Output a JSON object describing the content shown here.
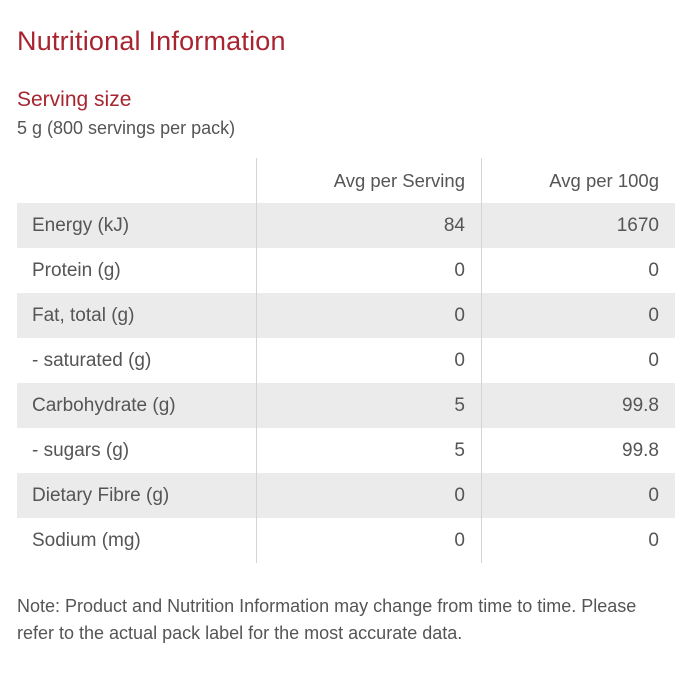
{
  "title": "Nutritional Information",
  "serving": {
    "heading": "Serving size",
    "value": "5 g (800 servings per pack)"
  },
  "table": {
    "headers": [
      "",
      "Avg per Serving",
      "Avg per 100g"
    ],
    "rows": [
      {
        "label": "Energy (kJ)",
        "per_serving": "84",
        "per_100g": "1670"
      },
      {
        "label": "Protein (g)",
        "per_serving": "0",
        "per_100g": "0"
      },
      {
        "label": "Fat, total (g)",
        "per_serving": "0",
        "per_100g": "0"
      },
      {
        "label": "- saturated (g)",
        "per_serving": "0",
        "per_100g": "0"
      },
      {
        "label": "Carbohydrate (g)",
        "per_serving": "5",
        "per_100g": "99.8"
      },
      {
        "label": "- sugars (g)",
        "per_serving": "5",
        "per_100g": "99.8"
      },
      {
        "label": "Dietary Fibre (g)",
        "per_serving": "0",
        "per_100g": "0"
      },
      {
        "label": "Sodium (mg)",
        "per_serving": "0",
        "per_100g": "0"
      }
    ]
  },
  "note": "Note: Product and Nutrition Information may change from time to time. Please refer to the actual pack label for the most accurate data.",
  "colors": {
    "accent": "#a82430",
    "text": "#555555",
    "row_shade": "#ebebeb",
    "divider": "#d4d4d4"
  }
}
